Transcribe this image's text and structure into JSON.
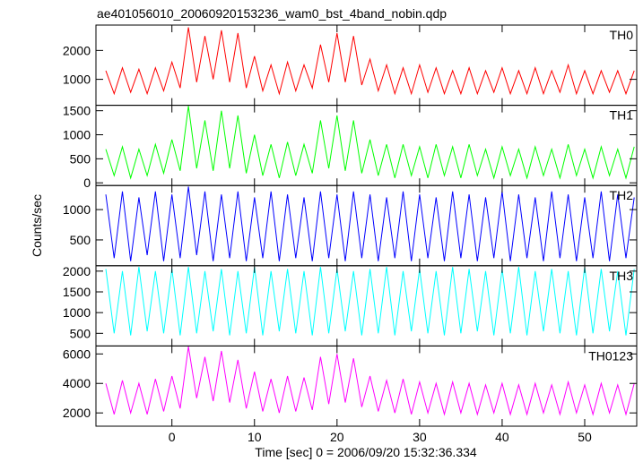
{
  "chart_data": {
    "type": "line",
    "title": "ae401056010_20060920153236_wam0_bst_4band_nobin.qdp",
    "xlabel": "Time [sec] 0 = 2006/09/20 15:32:36.334",
    "ylabel": "Counts/sec",
    "xlim": [
      -9.2,
      56.3
    ],
    "xticks": [
      0,
      10,
      20,
      30,
      40,
      50
    ],
    "x": [
      -8,
      -7,
      -6,
      -5,
      -4,
      -3,
      -2,
      -1,
      0,
      1,
      2,
      3,
      4,
      5,
      6,
      7,
      8,
      9,
      10,
      11,
      12,
      13,
      14,
      15,
      16,
      17,
      18,
      19,
      20,
      21,
      22,
      23,
      24,
      25,
      26,
      27,
      28,
      29,
      30,
      31,
      32,
      33,
      34,
      35,
      36,
      37,
      38,
      39,
      40,
      41,
      42,
      43,
      44,
      45,
      46,
      47,
      48,
      49,
      50,
      51,
      52,
      53,
      54,
      55,
      56
    ],
    "series": [
      {
        "name": "TH0",
        "color": "#ff0000",
        "ylim": [
          100,
          2880
        ],
        "yticks": [
          1000,
          2000
        ],
        "values": [
          1300,
          500,
          1400,
          550,
          1350,
          500,
          1400,
          600,
          1600,
          700,
          2800,
          900,
          2500,
          1000,
          2700,
          900,
          2600,
          700,
          1800,
          600,
          1500,
          500,
          1600,
          600,
          1500,
          700,
          2200,
          900,
          2600,
          900,
          2500,
          800,
          1700,
          600,
          1500,
          500,
          1400,
          500,
          1500,
          550,
          1400,
          500,
          1300,
          500,
          1400,
          500,
          1300,
          550,
          1400,
          500,
          1300,
          500,
          1400,
          500,
          1300,
          550,
          1500,
          500,
          1300,
          500,
          1300,
          550,
          1300,
          500,
          1300
        ]
      },
      {
        "name": "TH1",
        "color": "#00ff00",
        "ylim": [
          -56,
          1613
        ],
        "yticks": [
          0,
          500,
          1000,
          1500
        ],
        "values": [
          700,
          150,
          750,
          100,
          700,
          150,
          800,
          200,
          900,
          250,
          1600,
          300,
          1300,
          250,
          1500,
          300,
          1400,
          200,
          1000,
          150,
          800,
          100,
          850,
          150,
          800,
          200,
          1300,
          300,
          1400,
          250,
          1300,
          200,
          900,
          150,
          800,
          100,
          800,
          150,
          750,
          100,
          800,
          150,
          750,
          100,
          800,
          150,
          700,
          100,
          750,
          150,
          700,
          100,
          750,
          150,
          700,
          100,
          800,
          150,
          700,
          100,
          750,
          150,
          700,
          100,
          750
        ]
      },
      {
        "name": "TH2",
        "color": "#0000ff",
        "ylim": [
          74,
          1397
        ],
        "yticks": [
          500,
          1000
        ],
        "values": [
          1250,
          200,
          1300,
          150,
          1200,
          250,
          1300,
          150,
          1250,
          200,
          1380,
          250,
          1300,
          150,
          1250,
          200,
          1300,
          150,
          1200,
          200,
          1300,
          150,
          1250,
          200,
          1200,
          150,
          1300,
          200,
          1250,
          150,
          1300,
          200,
          1250,
          150,
          1200,
          200,
          1300,
          150,
          1250,
          200,
          1200,
          150,
          1300,
          200,
          1250,
          150,
          1200,
          200,
          1300,
          150,
          1250,
          200,
          1200,
          150,
          1300,
          200,
          1250,
          150,
          1200,
          200,
          1300,
          150,
          1250,
          200,
          1200
        ]
      },
      {
        "name": "TH3",
        "color": "#00ffff",
        "ylim": [
          196,
          2130
        ],
        "yticks": [
          500,
          1000,
          1500,
          2000
        ],
        "values": [
          2050,
          500,
          2000,
          450,
          2100,
          550,
          2000,
          500,
          2050,
          450,
          2100,
          500,
          2000,
          550,
          2050,
          450,
          2000,
          500,
          2100,
          450,
          2000,
          550,
          2050,
          500,
          2000,
          450,
          2100,
          500,
          2050,
          550,
          2000,
          450,
          2050,
          500,
          2100,
          450,
          2000,
          550,
          2050,
          500,
          2000,
          450,
          2100,
          500,
          2050,
          550,
          2000,
          450,
          2050,
          500,
          2100,
          450,
          2000,
          550,
          2050,
          500,
          2000,
          450,
          2100,
          500,
          2050,
          550,
          2000,
          450,
          2050
        ]
      },
      {
        "name": "TH0123",
        "color": "#ff00ff",
        "ylim": [
          1100,
          6540
        ],
        "yticks": [
          2000,
          4000,
          6000
        ],
        "values": [
          4000,
          1900,
          4200,
          2000,
          4000,
          1900,
          4300,
          2100,
          4500,
          2300,
          6500,
          3000,
          5800,
          2800,
          6200,
          2700,
          5600,
          2300,
          4800,
          2100,
          4300,
          2000,
          4500,
          2100,
          4400,
          2200,
          5800,
          2600,
          6000,
          2700,
          5700,
          2400,
          4500,
          2100,
          4200,
          2000,
          4300,
          1900,
          4100,
          2000,
          4000,
          1900,
          4100,
          2000,
          4000,
          1900,
          3900,
          2000,
          4000,
          1900,
          3900,
          1900,
          4000,
          2000,
          3900,
          1900,
          4100,
          2000,
          3900,
          1900,
          4000,
          2000,
          3900,
          1900,
          4000
        ]
      }
    ]
  }
}
